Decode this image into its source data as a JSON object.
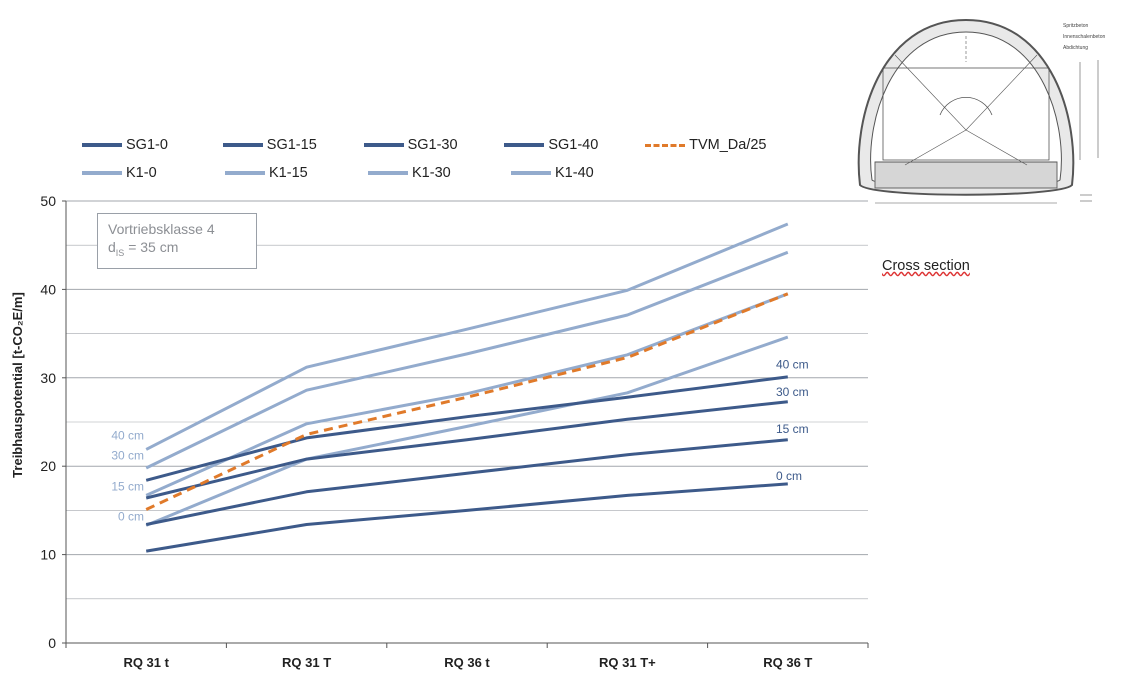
{
  "chart_data": {
    "type": "line",
    "categories": [
      "RQ 31 t",
      "RQ 31 T",
      "RQ 36 t",
      "RQ 31 T+",
      "RQ 36 T"
    ],
    "ylabel": "Treibhauspotential [t-CO₂E/m]",
    "ylim": [
      0,
      50
    ],
    "yticks": [
      0,
      10,
      20,
      30,
      40,
      50
    ],
    "grid": true,
    "legend_position": "top",
    "series": [
      {
        "name": "SG1-0",
        "style": "dark",
        "values": [
          10.4,
          13.4,
          15.0,
          16.7,
          18.0
        ]
      },
      {
        "name": "SG1-15",
        "style": "dark",
        "values": [
          13.4,
          17.1,
          19.2,
          21.3,
          23.0
        ]
      },
      {
        "name": "SG1-30",
        "style": "dark",
        "values": [
          16.4,
          20.8,
          23.0,
          25.3,
          27.3
        ]
      },
      {
        "name": "SG1-40",
        "style": "dark",
        "values": [
          18.4,
          23.2,
          25.6,
          27.8,
          30.1
        ]
      },
      {
        "name": "TVM_Da/25",
        "style": "dashed",
        "values": [
          15.1,
          23.6,
          27.8,
          32.3,
          39.5
        ]
      },
      {
        "name": "K1-0",
        "style": "light",
        "values": [
          13.3,
          20.8,
          24.5,
          28.3,
          34.6
        ]
      },
      {
        "name": "K1-15",
        "style": "light",
        "values": [
          16.7,
          24.8,
          28.2,
          32.6,
          39.5
        ]
      },
      {
        "name": "K1-30",
        "style": "light",
        "values": [
          19.8,
          28.6,
          32.7,
          37.1,
          44.2
        ]
      },
      {
        "name": "K1-40",
        "style": "light",
        "values": [
          21.9,
          31.2,
          35.5,
          39.9,
          47.4
        ]
      }
    ],
    "left_labels": [
      {
        "text": "40 cm",
        "value": 23.5
      },
      {
        "text": "30 cm",
        "value": 21.2
      },
      {
        "text": "15 cm",
        "value": 17.7
      },
      {
        "text": "0 cm",
        "value": 14.3
      }
    ],
    "right_labels": [
      {
        "text": "40 cm",
        "value": 31.5
      },
      {
        "text": "30 cm",
        "value": 28.4
      },
      {
        "text": "15 cm",
        "value": 24.2
      },
      {
        "text": "0 cm",
        "value": 18.9
      }
    ],
    "annotation": {
      "line1": "Vortriebsklasse 4",
      "prefix": "d",
      "sub": "IS",
      "suffix": " = 35 cm"
    }
  },
  "legend": {
    "row1": [
      "SG1-0",
      "SG1-15",
      "SG1-30",
      "SG1-40",
      "TVM_Da/25"
    ],
    "row2": [
      "K1-0",
      "K1-15",
      "K1-30",
      "K1-40"
    ]
  },
  "cross_section": {
    "caption": "Cross section",
    "labels": [
      "Spritzbeton",
      "Innenschalenbeton",
      "Abdichtung"
    ]
  },
  "colors": {
    "dark": "#3d5a8a",
    "light": "#93abcd",
    "dashed": "#e07a2a",
    "grid": "#a3a7ad",
    "axis": "#555555"
  }
}
